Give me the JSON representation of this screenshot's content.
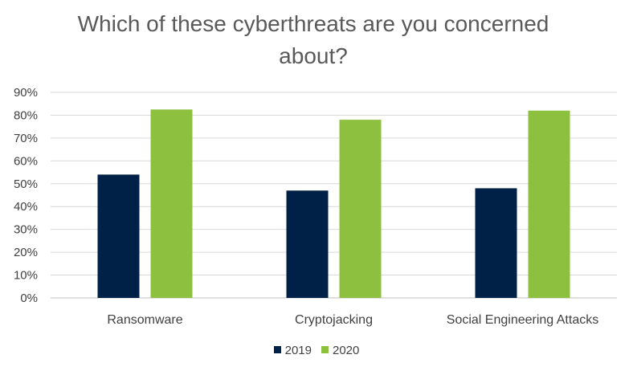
{
  "chart_data": {
    "type": "bar",
    "title": "Which of these cyberthreats are you concerned about?",
    "categories": [
      "Ransomware",
      "Cryptojacking",
      "Social Engineering Attacks"
    ],
    "series": [
      {
        "name": "2019",
        "values": [
          54,
          47,
          48
        ],
        "color": "#002147"
      },
      {
        "name": "2020",
        "values": [
          82.5,
          78,
          82
        ],
        "color": "#8DC03F"
      }
    ],
    "yticks": [
      "0%",
      "10%",
      "20%",
      "30%",
      "40%",
      "50%",
      "60%",
      "70%",
      "80%",
      "90%"
    ],
    "ylim": [
      0,
      90
    ],
    "grid": true,
    "legend_position": "bottom"
  }
}
